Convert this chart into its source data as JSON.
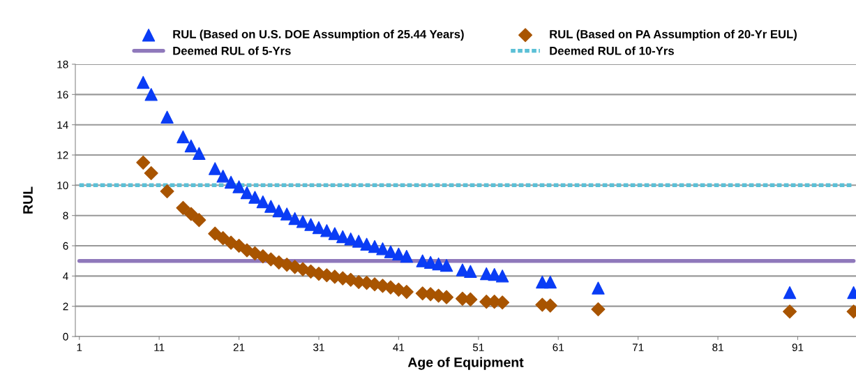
{
  "chart_data": {
    "type": "scatter",
    "xlabel": "Age of Equipment",
    "ylabel": "RUL",
    "xlim": [
      0.5,
      98.3
    ],
    "xticks": [
      1,
      11,
      21,
      31,
      41,
      51,
      61,
      71,
      81,
      91
    ],
    "ylim": [
      0,
      18
    ],
    "yticks": [
      0,
      2,
      4,
      6,
      8,
      10,
      12,
      14,
      16,
      18
    ],
    "grid": "y",
    "legend": "top",
    "series": [
      {
        "name": "RUL (Based on U.S. DOE Assumption of 25.44 Years)",
        "marker": "triangle",
        "color": "#0a3cf5",
        "x": [
          9,
          10,
          12,
          14,
          15,
          16,
          18,
          19,
          20,
          21,
          22,
          23,
          24,
          25,
          26,
          27,
          28,
          29,
          30,
          31,
          32,
          33,
          34,
          35,
          36,
          37,
          38,
          39,
          40,
          41,
          42,
          44,
          45,
          46,
          47,
          49,
          50,
          52,
          53,
          54,
          59,
          60,
          66,
          90,
          98
        ],
        "values": [
          16.8,
          16.0,
          14.5,
          13.2,
          12.6,
          12.1,
          11.1,
          10.6,
          10.2,
          9.9,
          9.5,
          9.2,
          8.9,
          8.6,
          8.3,
          8.1,
          7.8,
          7.6,
          7.4,
          7.2,
          7.0,
          6.8,
          6.6,
          6.45,
          6.3,
          6.1,
          5.95,
          5.8,
          5.6,
          5.45,
          5.3,
          5.0,
          4.9,
          4.8,
          4.7,
          4.4,
          4.3,
          4.15,
          4.1,
          4.0,
          3.6,
          3.6,
          3.2,
          2.9,
          2.9
        ]
      },
      {
        "name": "RUL (Based on PA Assumption of 20-Yr EUL)",
        "marker": "diamond",
        "color": "#a85400",
        "x": [
          9,
          10,
          12,
          14,
          15,
          16,
          18,
          19,
          20,
          21,
          22,
          23,
          24,
          25,
          26,
          27,
          28,
          29,
          30,
          31,
          32,
          33,
          34,
          35,
          36,
          37,
          38,
          39,
          40,
          41,
          42,
          44,
          45,
          46,
          47,
          49,
          50,
          52,
          53,
          54,
          59,
          60,
          66,
          90,
          98
        ],
        "values": [
          11.5,
          10.8,
          9.6,
          8.5,
          8.1,
          7.7,
          6.8,
          6.5,
          6.2,
          6.0,
          5.7,
          5.5,
          5.3,
          5.1,
          4.9,
          4.75,
          4.6,
          4.45,
          4.3,
          4.15,
          4.05,
          3.95,
          3.85,
          3.75,
          3.6,
          3.55,
          3.45,
          3.35,
          3.25,
          3.1,
          2.95,
          2.85,
          2.8,
          2.7,
          2.6,
          2.5,
          2.45,
          2.3,
          2.3,
          2.25,
          2.1,
          2.05,
          1.8,
          1.65,
          1.65
        ]
      },
      {
        "name": "Deemed RUL of 5-Yrs",
        "type": "line",
        "line_style": "solid",
        "color": "#8f78bb",
        "x": [
          1,
          98
        ],
        "values": [
          5,
          5
        ]
      },
      {
        "name": "Deemed RUL of 10-Yrs",
        "type": "line",
        "line_style": "dashed",
        "color": "#5bc0d6",
        "x": [
          1,
          98
        ],
        "values": [
          10,
          10
        ]
      }
    ]
  }
}
